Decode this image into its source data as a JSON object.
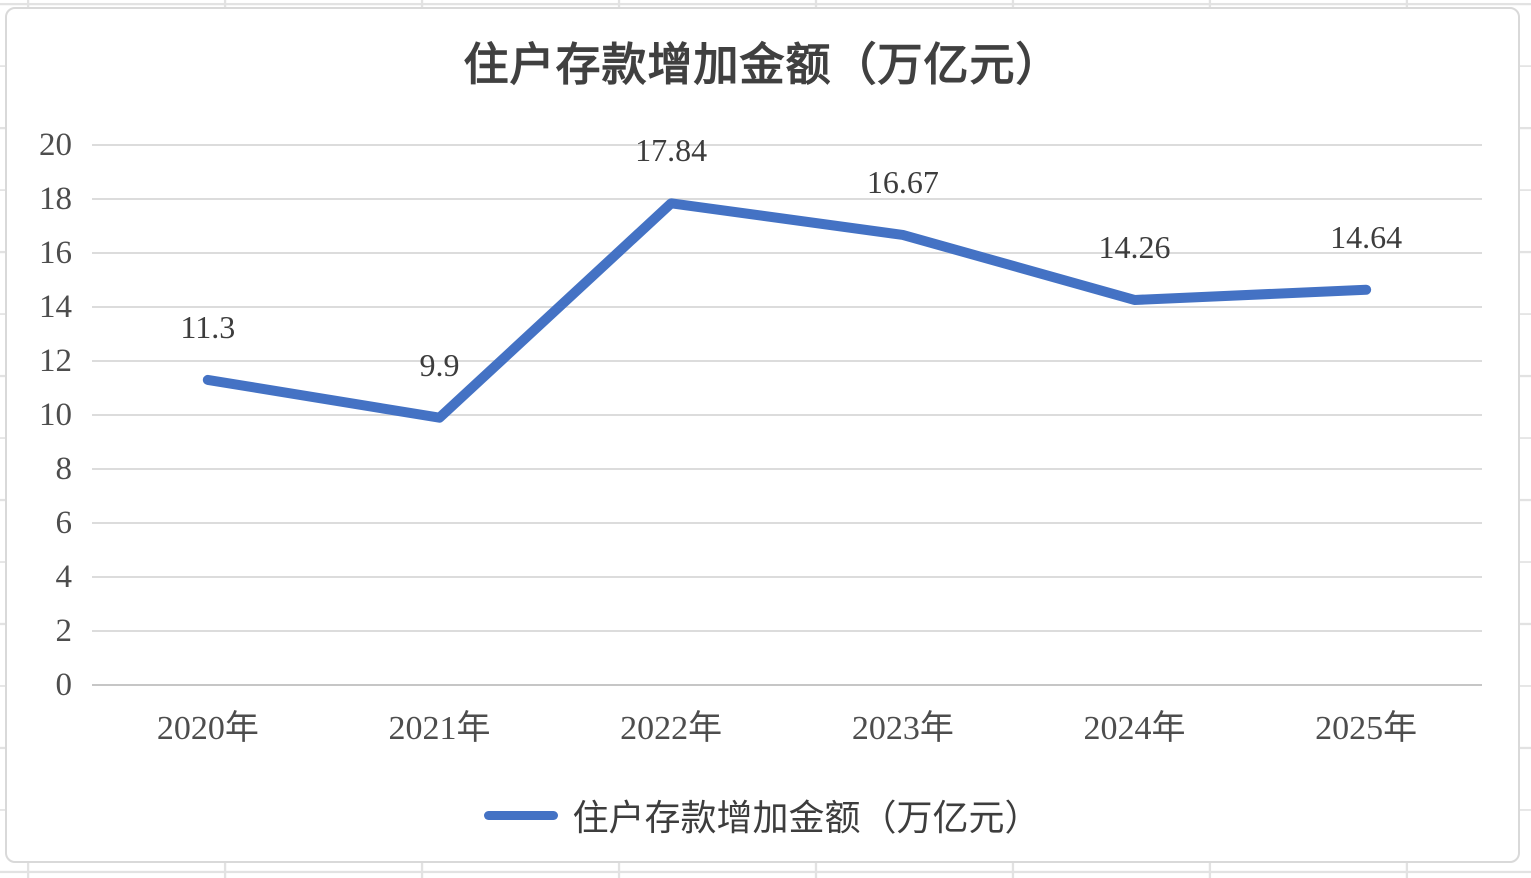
{
  "chart_data": {
    "type": "line",
    "title": "住户存款增加金额（万亿元）",
    "categories": [
      "2020年",
      "2021年",
      "2022年",
      "2023年",
      "2024年",
      "2025年"
    ],
    "series": [
      {
        "name": "住户存款增加金额（万亿元）",
        "values": [
          11.3,
          9.9,
          17.84,
          16.67,
          14.26,
          14.64
        ],
        "data_labels": [
          "11.3",
          "9.9",
          "17.84",
          "16.67",
          "14.26",
          "14.64"
        ]
      }
    ],
    "y_ticks": [
      0,
      2,
      4,
      6,
      8,
      10,
      12,
      14,
      16,
      18,
      20
    ],
    "ylim": [
      0,
      20
    ],
    "xlabel": "",
    "ylabel": "",
    "grid": true,
    "legend_position": "bottom",
    "colors": {
      "line": "#4472C4",
      "gridline": "#dcdcdc",
      "axis_line": "#c6c6c6",
      "tick_label": "#4d4d4d",
      "data_label": "#3d3d3d",
      "title": "#404040"
    }
  }
}
